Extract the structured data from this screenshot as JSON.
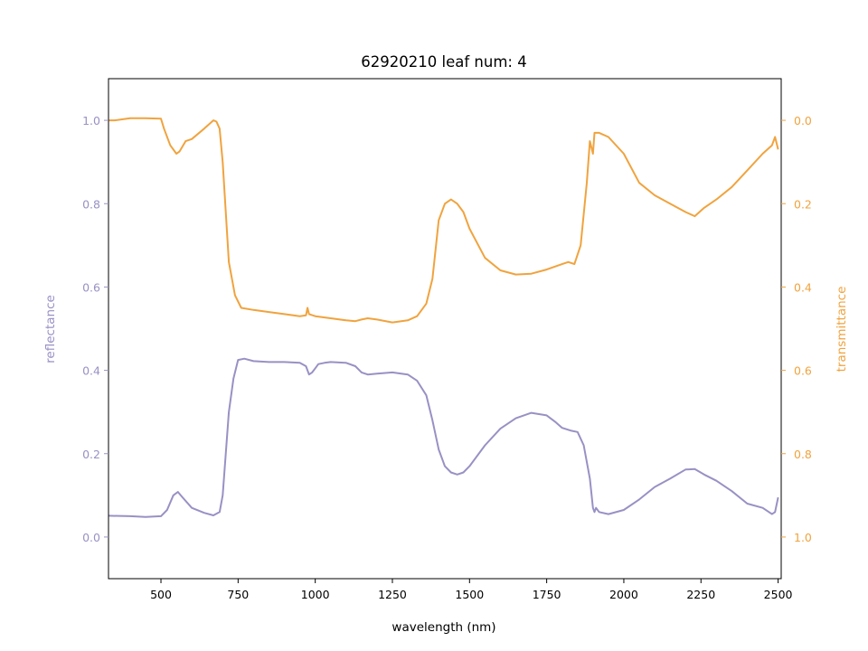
{
  "chart_data": {
    "type": "line",
    "title": "62920210 leaf num: 4",
    "xlabel": "wavelength (nm)",
    "ylabel": "reflectance",
    "y2label": "transmittance",
    "xlim": [
      330,
      2510
    ],
    "ylim": [
      -0.1,
      1.1
    ],
    "y2lim": [
      1.1,
      -0.1
    ],
    "y2_inverted": true,
    "x_ticks": [
      500,
      750,
      1000,
      1250,
      1500,
      1750,
      2000,
      2250,
      2500
    ],
    "y_ticks": [
      0.0,
      0.2,
      0.4,
      0.6,
      0.8,
      1.0
    ],
    "y2_ticks": [
      0.0,
      0.2,
      0.4,
      0.6,
      0.8,
      1.0
    ],
    "grid": false,
    "colors": {
      "reflectance": "#9891c4",
      "transmittance": "#f0a33e"
    },
    "series": [
      {
        "name": "reflectance",
        "axis": "left",
        "x": [
          330,
          400,
          450,
          500,
          520,
          540,
          555,
          570,
          600,
          640,
          670,
          690,
          700,
          710,
          720,
          735,
          750,
          770,
          800,
          850,
          900,
          950,
          970,
          980,
          990,
          1000,
          1010,
          1030,
          1050,
          1100,
          1130,
          1150,
          1170,
          1200,
          1250,
          1300,
          1330,
          1360,
          1380,
          1400,
          1420,
          1440,
          1460,
          1480,
          1500,
          1550,
          1600,
          1650,
          1700,
          1750,
          1780,
          1800,
          1830,
          1850,
          1870,
          1890,
          1900,
          1905,
          1910,
          1920,
          1950,
          2000,
          2050,
          2100,
          2150,
          2200,
          2230,
          2260,
          2300,
          2350,
          2400,
          2450,
          2480,
          2490,
          2500
        ],
        "values": [
          0.051,
          0.05,
          0.048,
          0.05,
          0.065,
          0.1,
          0.108,
          0.095,
          0.07,
          0.058,
          0.052,
          0.06,
          0.1,
          0.2,
          0.3,
          0.38,
          0.425,
          0.428,
          0.422,
          0.42,
          0.42,
          0.418,
          0.41,
          0.39,
          0.395,
          0.405,
          0.415,
          0.418,
          0.42,
          0.418,
          0.41,
          0.395,
          0.39,
          0.392,
          0.395,
          0.39,
          0.375,
          0.34,
          0.28,
          0.21,
          0.17,
          0.155,
          0.15,
          0.155,
          0.17,
          0.22,
          0.26,
          0.285,
          0.298,
          0.292,
          0.275,
          0.262,
          0.255,
          0.252,
          0.22,
          0.14,
          0.07,
          0.06,
          0.07,
          0.06,
          0.055,
          0.065,
          0.09,
          0.12,
          0.14,
          0.162,
          0.163,
          0.15,
          0.135,
          0.11,
          0.08,
          0.07,
          0.055,
          0.06,
          0.095
        ]
      },
      {
        "name": "transmittance",
        "axis": "right",
        "x": [
          330,
          350,
          400,
          450,
          500,
          510,
          530,
          550,
          560,
          580,
          600,
          640,
          670,
          680,
          690,
          700,
          710,
          720,
          740,
          760,
          800,
          850,
          900,
          950,
          970,
          975,
          980,
          1000,
          1050,
          1100,
          1130,
          1150,
          1170,
          1200,
          1250,
          1300,
          1330,
          1360,
          1380,
          1400,
          1420,
          1440,
          1460,
          1480,
          1500,
          1550,
          1600,
          1650,
          1700,
          1750,
          1780,
          1800,
          1820,
          1840,
          1860,
          1880,
          1890,
          1900,
          1905,
          1910,
          1920,
          1950,
          2000,
          2050,
          2100,
          2150,
          2200,
          2230,
          2260,
          2300,
          2350,
          2400,
          2450,
          2480,
          2490,
          2500
        ],
        "values": [
          0.0,
          0.0,
          -0.005,
          -0.005,
          -0.004,
          0.02,
          0.06,
          0.08,
          0.075,
          0.05,
          0.045,
          0.02,
          0.0,
          0.003,
          0.02,
          0.1,
          0.22,
          0.34,
          0.42,
          0.45,
          0.455,
          0.46,
          0.465,
          0.47,
          0.468,
          0.45,
          0.465,
          0.47,
          0.475,
          0.48,
          0.482,
          0.478,
          0.475,
          0.478,
          0.485,
          0.48,
          0.47,
          0.44,
          0.38,
          0.24,
          0.2,
          0.19,
          0.2,
          0.22,
          0.26,
          0.33,
          0.36,
          0.37,
          0.368,
          0.358,
          0.35,
          0.345,
          0.34,
          0.345,
          0.3,
          0.15,
          0.05,
          0.08,
          0.03,
          0.03,
          0.03,
          0.04,
          0.08,
          0.15,
          0.18,
          0.2,
          0.22,
          0.23,
          0.21,
          0.19,
          0.16,
          0.12,
          0.08,
          0.06,
          0.04,
          0.07
        ]
      }
    ]
  }
}
